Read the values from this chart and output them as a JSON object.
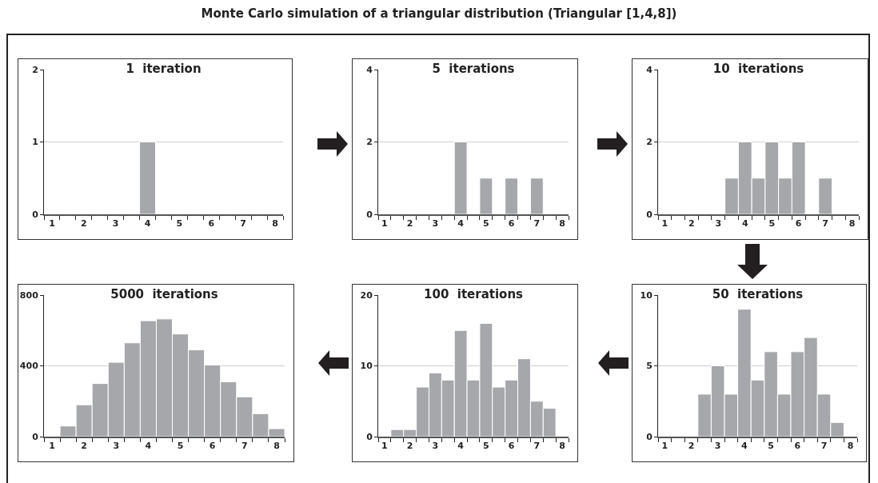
{
  "chart_data": [
    {
      "type": "histogram",
      "title": "1  iteration",
      "annotations": [
        "Monte Carlo simulation of a triangular distribution (Triangular [1,4,8])"
      ],
      "bins": [
        0.75,
        1.25,
        1.75,
        2.25,
        2.75,
        3.25,
        3.75,
        4.25,
        4.75,
        5.25,
        5.75,
        6.25,
        6.75,
        7.25,
        7.75,
        8.25
      ],
      "values": [
        0,
        0,
        0,
        0,
        0,
        0,
        1,
        0,
        0,
        0,
        0,
        0,
        0,
        0,
        0
      ],
      "color": "#a6a7aa",
      "xlim": [
        0.75,
        8.25
      ],
      "xticks": [
        {
          "value": 0.75,
          "label": null
        },
        1,
        {
          "value": 1.25,
          "label": null
        },
        {
          "value": 1.75,
          "label": null
        },
        2,
        {
          "value": 2.25,
          "label": null
        },
        {
          "value": 2.75,
          "label": null
        },
        3,
        {
          "value": 3.25,
          "label": null
        },
        {
          "value": 3.75,
          "label": null
        },
        4,
        {
          "value": 4.25,
          "label": null
        },
        {
          "value": 4.75,
          "label": null
        },
        5,
        {
          "value": 5.25,
          "label": null
        },
        {
          "value": 5.75,
          "label": null
        },
        6,
        {
          "value": 6.25,
          "label": null
        },
        {
          "value": 6.75,
          "label": null
        },
        7,
        {
          "value": 7.25,
          "label": null
        },
        {
          "value": 7.75,
          "label": null
        },
        8,
        {
          "value": 8.25,
          "label": null
        }
      ],
      "ylim": [
        0,
        2
      ],
      "yticks": [
        0,
        1,
        2
      ],
      "grid": "y"
    },
    {
      "type": "histogram",
      "title": "5  iterations",
      "bins": [
        0.75,
        1.25,
        1.75,
        2.25,
        2.75,
        3.25,
        3.75,
        4.25,
        4.75,
        5.25,
        5.75,
        6.25,
        6.75,
        7.25,
        7.75,
        8.25
      ],
      "values": [
        0,
        0,
        0,
        0,
        0,
        0,
        2,
        0,
        1,
        0,
        1,
        0,
        1,
        0,
        0
      ],
      "color": "#a6a7aa",
      "xlim": [
        0.75,
        8.25
      ],
      "xticks": [
        {
          "value": 0.75,
          "label": null
        },
        1,
        {
          "value": 1.25,
          "label": null
        },
        {
          "value": 1.75,
          "label": null
        },
        2,
        {
          "value": 2.25,
          "label": null
        },
        {
          "value": 2.75,
          "label": null
        },
        3,
        {
          "value": 3.25,
          "label": null
        },
        {
          "value": 3.75,
          "label": null
        },
        4,
        {
          "value": 4.25,
          "label": null
        },
        {
          "value": 4.75,
          "label": null
        },
        5,
        {
          "value": 5.25,
          "label": null
        },
        {
          "value": 5.75,
          "label": null
        },
        6,
        {
          "value": 6.25,
          "label": null
        },
        {
          "value": 6.75,
          "label": null
        },
        7,
        {
          "value": 7.25,
          "label": null
        },
        {
          "value": 7.75,
          "label": null
        },
        8,
        {
          "value": 8.25,
          "label": null
        }
      ],
      "ylim": [
        0,
        4
      ],
      "yticks": [
        0,
        2,
        4
      ],
      "grid": "y"
    },
    {
      "type": "histogram",
      "title": "10  iterations",
      "bins": [
        0.75,
        1.25,
        1.75,
        2.25,
        2.75,
        3.25,
        3.75,
        4.25,
        4.75,
        5.25,
        5.75,
        6.25,
        6.75,
        7.25,
        7.75,
        8.25
      ],
      "values": [
        0,
        0,
        0,
        0,
        0,
        1,
        2,
        1,
        2,
        1,
        2,
        0,
        1,
        0,
        0
      ],
      "color": "#a6a7aa",
      "xlim": [
        0.75,
        8.25
      ],
      "xticks": [
        {
          "value": 0.75,
          "label": null
        },
        1,
        {
          "value": 1.25,
          "label": null
        },
        {
          "value": 1.75,
          "label": null
        },
        2,
        {
          "value": 2.25,
          "label": null
        },
        {
          "value": 2.75,
          "label": null
        },
        3,
        {
          "value": 3.25,
          "label": null
        },
        {
          "value": 3.75,
          "label": null
        },
        4,
        {
          "value": 4.25,
          "label": null
        },
        {
          "value": 4.75,
          "label": null
        },
        5,
        {
          "value": 5.25,
          "label": null
        },
        {
          "value": 5.75,
          "label": null
        },
        6,
        {
          "value": 6.25,
          "label": null
        },
        {
          "value": 6.75,
          "label": null
        },
        7,
        {
          "value": 7.25,
          "label": null
        },
        {
          "value": 7.75,
          "label": null
        },
        8,
        {
          "value": 8.25,
          "label": null
        }
      ],
      "ylim": [
        0,
        4
      ],
      "yticks": [
        0,
        2,
        4
      ],
      "grid": "y"
    },
    {
      "type": "histogram",
      "title": "5000  iterations",
      "bins": [
        0.75,
        1.25,
        1.75,
        2.25,
        2.75,
        3.25,
        3.75,
        4.25,
        4.75,
        5.25,
        5.75,
        6.25,
        6.75,
        7.25,
        7.75,
        8.25
      ],
      "values": [
        0,
        60,
        180,
        300,
        420,
        530,
        655,
        665,
        580,
        490,
        405,
        310,
        225,
        130,
        45
      ],
      "color": "#a6a7aa",
      "xlim": [
        0.75,
        8.25
      ],
      "xticks": [
        {
          "value": 0.75,
          "label": null
        },
        1,
        {
          "value": 1.25,
          "label": null
        },
        {
          "value": 1.75,
          "label": null
        },
        2,
        {
          "value": 2.25,
          "label": null
        },
        {
          "value": 2.75,
          "label": null
        },
        3,
        {
          "value": 3.25,
          "label": null
        },
        {
          "value": 3.75,
          "label": null
        },
        4,
        {
          "value": 4.25,
          "label": null
        },
        {
          "value": 4.75,
          "label": null
        },
        5,
        {
          "value": 5.25,
          "label": null
        },
        {
          "value": 5.75,
          "label": null
        },
        6,
        {
          "value": 6.25,
          "label": null
        },
        {
          "value": 6.75,
          "label": null
        },
        7,
        {
          "value": 7.25,
          "label": null
        },
        {
          "value": 7.75,
          "label": null
        },
        8,
        {
          "value": 8.25,
          "label": null
        }
      ],
      "ylim": [
        0,
        800
      ],
      "yticks": [
        0,
        400,
        800
      ],
      "grid": "y"
    },
    {
      "type": "histogram",
      "title": "100  iterations",
      "bins": [
        0.75,
        1.25,
        1.75,
        2.25,
        2.75,
        3.25,
        3.75,
        4.25,
        4.75,
        5.25,
        5.75,
        6.25,
        6.75,
        7.25,
        7.75,
        8.25
      ],
      "values": [
        0,
        1,
        1,
        7,
        9,
        8,
        15,
        8,
        16,
        7,
        8,
        11,
        5,
        4,
        0
      ],
      "color": "#a6a7aa",
      "xlim": [
        0.75,
        8.25
      ],
      "xticks": [
        {
          "value": 0.75,
          "label": null
        },
        1,
        {
          "value": 1.25,
          "label": null
        },
        {
          "value": 1.75,
          "label": null
        },
        2,
        {
          "value": 2.25,
          "label": null
        },
        {
          "value": 2.75,
          "label": null
        },
        3,
        {
          "value": 3.25,
          "label": null
        },
        {
          "value": 3.75,
          "label": null
        },
        4,
        {
          "value": 4.25,
          "label": null
        },
        {
          "value": 4.75,
          "label": null
        },
        5,
        {
          "value": 5.25,
          "label": null
        },
        {
          "value": 5.75,
          "label": null
        },
        6,
        {
          "value": 6.25,
          "label": null
        },
        {
          "value": 6.75,
          "label": null
        },
        7,
        {
          "value": 7.25,
          "label": null
        },
        {
          "value": 7.75,
          "label": null
        },
        8,
        {
          "value": 8.25,
          "label": null
        }
      ],
      "ylim": [
        0,
        20
      ],
      "yticks": [
        0,
        10,
        20
      ],
      "grid": "y"
    },
    {
      "type": "histogram",
      "title": "50  iterations",
      "bins": [
        0.75,
        1.25,
        1.75,
        2.25,
        2.75,
        3.25,
        3.75,
        4.25,
        4.75,
        5.25,
        5.75,
        6.25,
        6.75,
        7.25,
        7.75,
        8.25
      ],
      "values": [
        0,
        0,
        0,
        3,
        5,
        3,
        9,
        4,
        6,
        3,
        6,
        7,
        3,
        1,
        0
      ],
      "color": "#a6a7aa",
      "xlim": [
        0.75,
        8.25
      ],
      "xticks": [
        {
          "value": 0.75,
          "label": null
        },
        1,
        {
          "value": 1.25,
          "label": null
        },
        {
          "value": 1.75,
          "label": null
        },
        2,
        {
          "value": 2.25,
          "label": null
        },
        {
          "value": 2.75,
          "label": null
        },
        3,
        {
          "value": 3.25,
          "label": null
        },
        {
          "value": 3.75,
          "label": null
        },
        4,
        {
          "value": 4.25,
          "label": null
        },
        {
          "value": 4.75,
          "label": null
        },
        5,
        {
          "value": 5.25,
          "label": null
        },
        {
          "value": 5.75,
          "label": null
        },
        6,
        {
          "value": 6.25,
          "label": null
        },
        {
          "value": 6.75,
          "label": null
        },
        7,
        {
          "value": 7.25,
          "label": null
        },
        {
          "value": 7.75,
          "label": null
        },
        8,
        {
          "value": 8.25,
          "label": null
        }
      ],
      "ylim": [
        0,
        10
      ],
      "yticks": [
        0,
        5,
        10
      ],
      "grid": "y"
    }
  ]
}
